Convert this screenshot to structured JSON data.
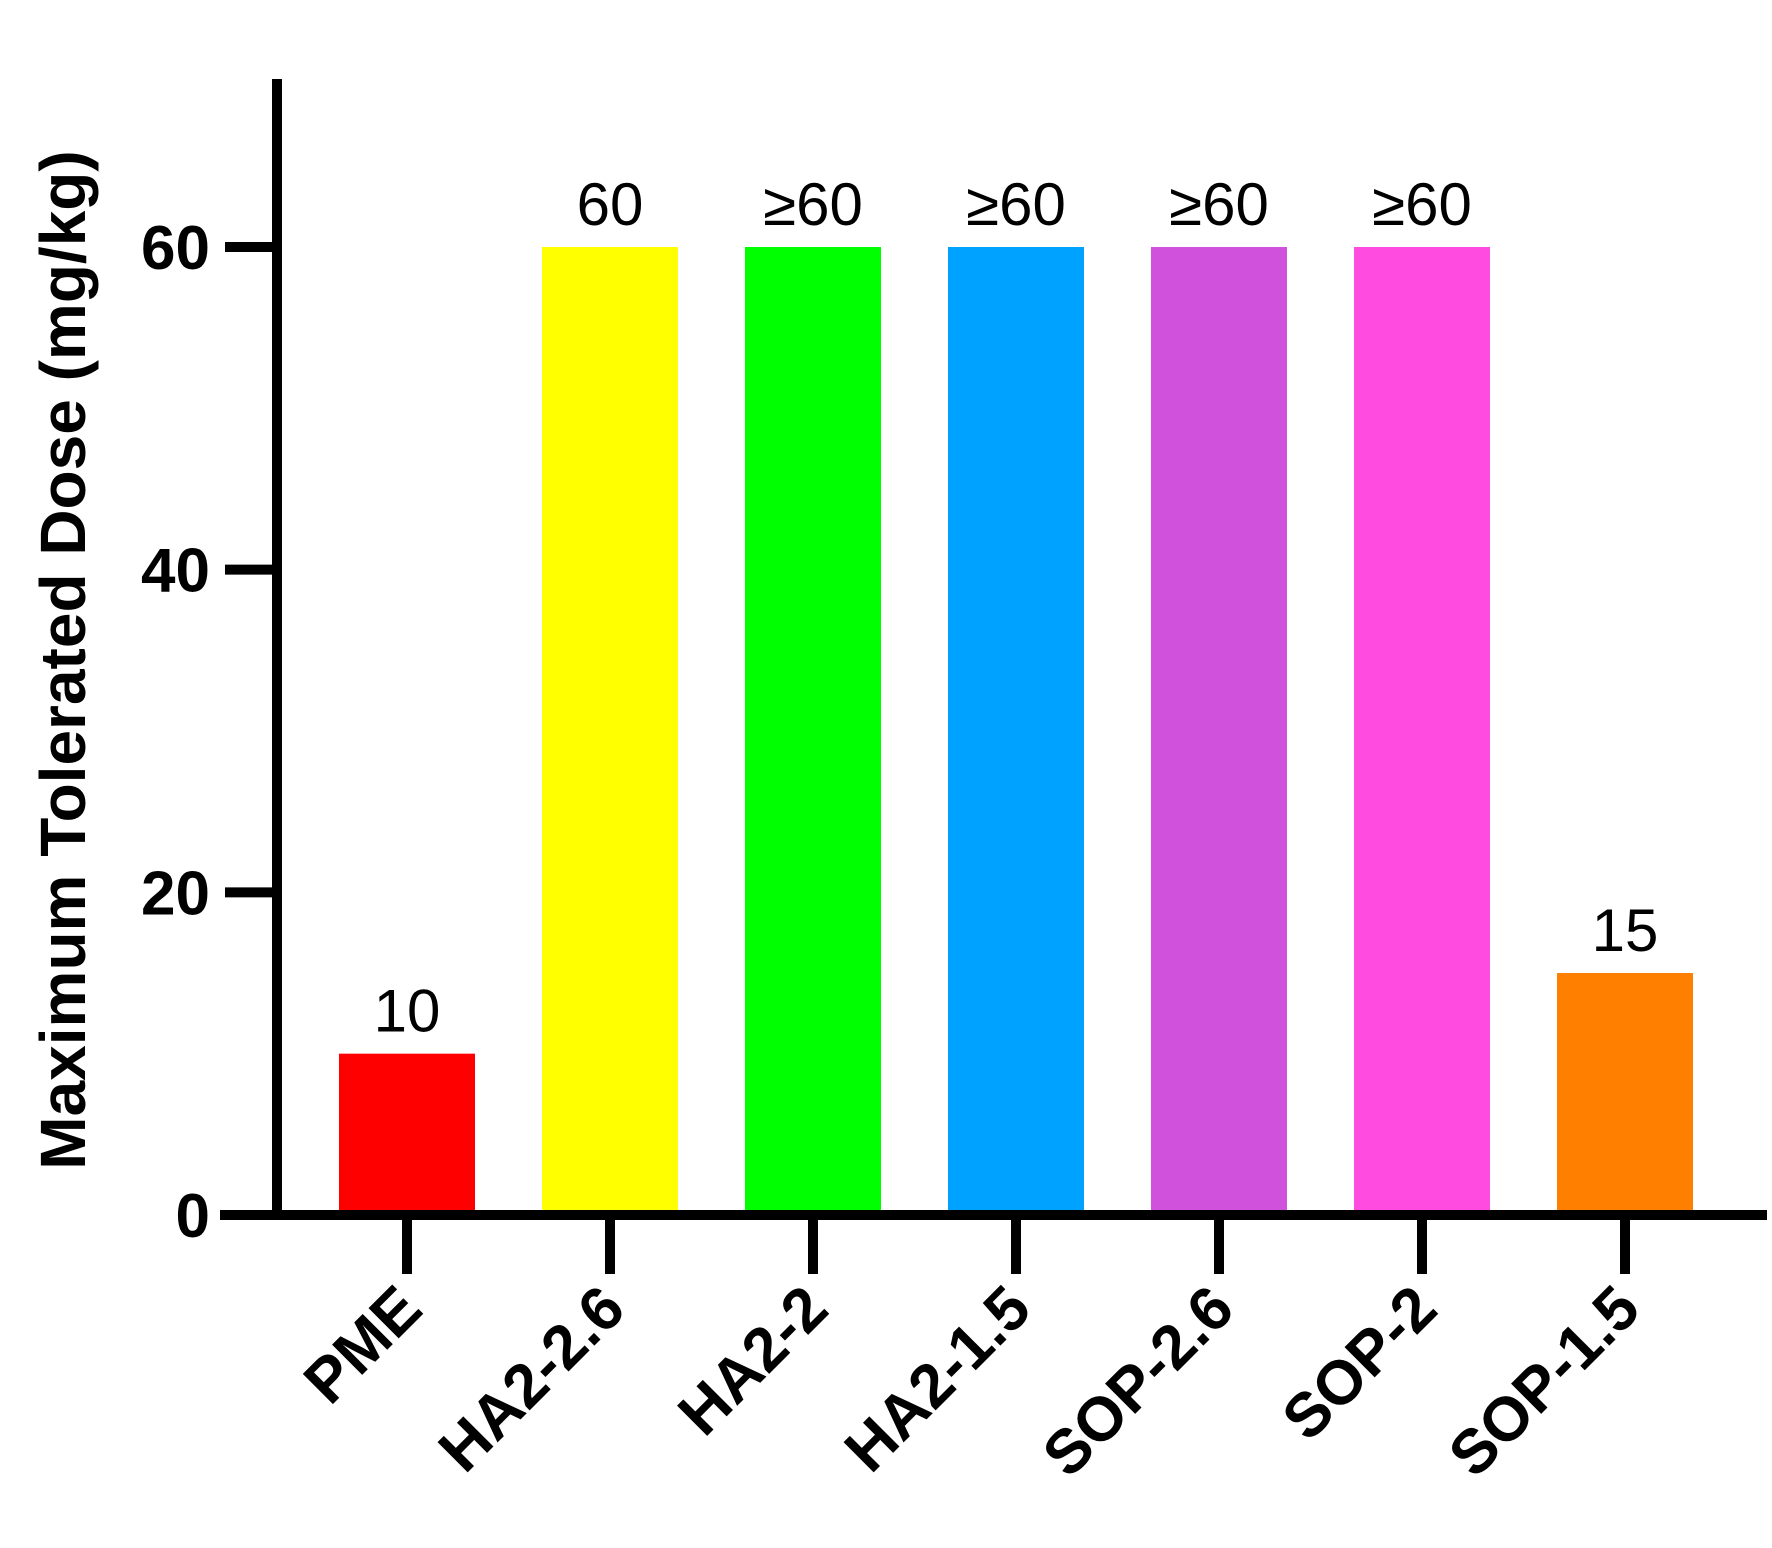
{
  "chart_data": {
    "type": "bar",
    "title": "",
    "xlabel": "",
    "ylabel": "Maximum Tolerated Dose (mg/kg)",
    "ylim": [
      0,
      70
    ],
    "yticks": [
      0,
      20,
      40,
      60
    ],
    "grid": false,
    "legend": "none",
    "categories": [
      "PME",
      "HA2-2.6",
      "HA2-2",
      "HA2-1.5",
      "SOP-2.6",
      "SOP-2",
      "SOP-1.5"
    ],
    "values": [
      10,
      60,
      60,
      60,
      60,
      60,
      15
    ],
    "data_labels": [
      "10",
      "60",
      "≥60",
      "≥60",
      "≥60",
      "≥60",
      "15"
    ],
    "colors": [
      "#ff0000",
      "#ffff00",
      "#00ff00",
      "#00a2ff",
      "#d052dc",
      "#ff4bdf",
      "#ff8000"
    ]
  }
}
